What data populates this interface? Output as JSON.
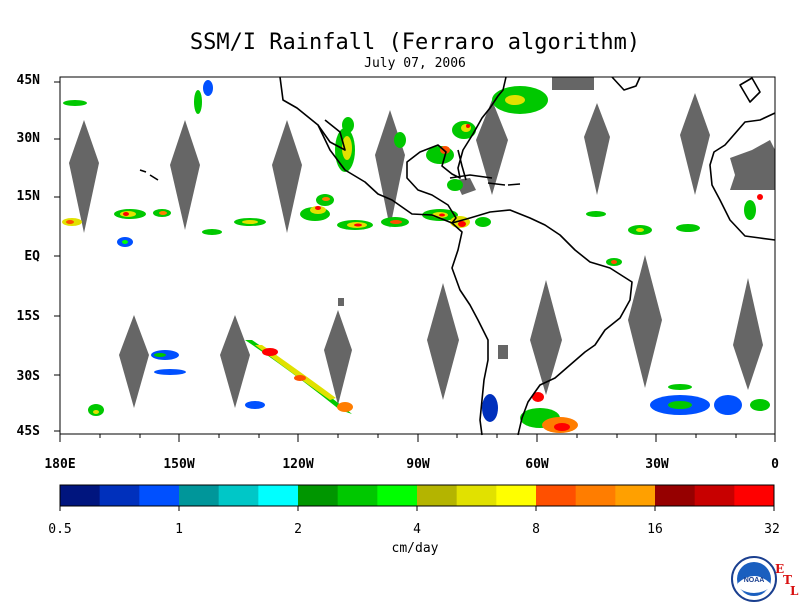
{
  "header": {
    "title": "SSM/I Rainfall (Ferraro algorithm)",
    "date": "July 07, 2006"
  },
  "axes": {
    "lat_labels": [
      "45N",
      "30N",
      "15N",
      "EQ",
      "15S",
      "30S",
      "45S"
    ],
    "lon_labels": [
      "180E",
      "150W",
      "120W",
      "90W",
      "60W",
      "30W",
      "0"
    ],
    "lon_range": [
      -180,
      0
    ],
    "lat_range": [
      -45,
      45
    ]
  },
  "colorbar": {
    "tick_labels": [
      "0.5",
      "1",
      "2",
      "4",
      "8",
      "16",
      "32"
    ],
    "units": "cm/day",
    "colors": [
      "#00157e",
      "#0030bc",
      "#0050ff",
      "#00969a",
      "#00c7c7",
      "#00ffff",
      "#009600",
      "#00c800",
      "#00ff00",
      "#b4b400",
      "#e1e100",
      "#ffff00",
      "#ff5000",
      "#ff7d00",
      "#ffa000",
      "#960000",
      "#c80000",
      "#ff0000"
    ]
  },
  "map": {
    "land_outline_color": "#000000",
    "swath_gap_color": "#666666",
    "missing_land_color": "#777777"
  },
  "logo": {
    "text": "NOAA",
    "etl_letters": [
      "E",
      "T",
      "L"
    ]
  }
}
